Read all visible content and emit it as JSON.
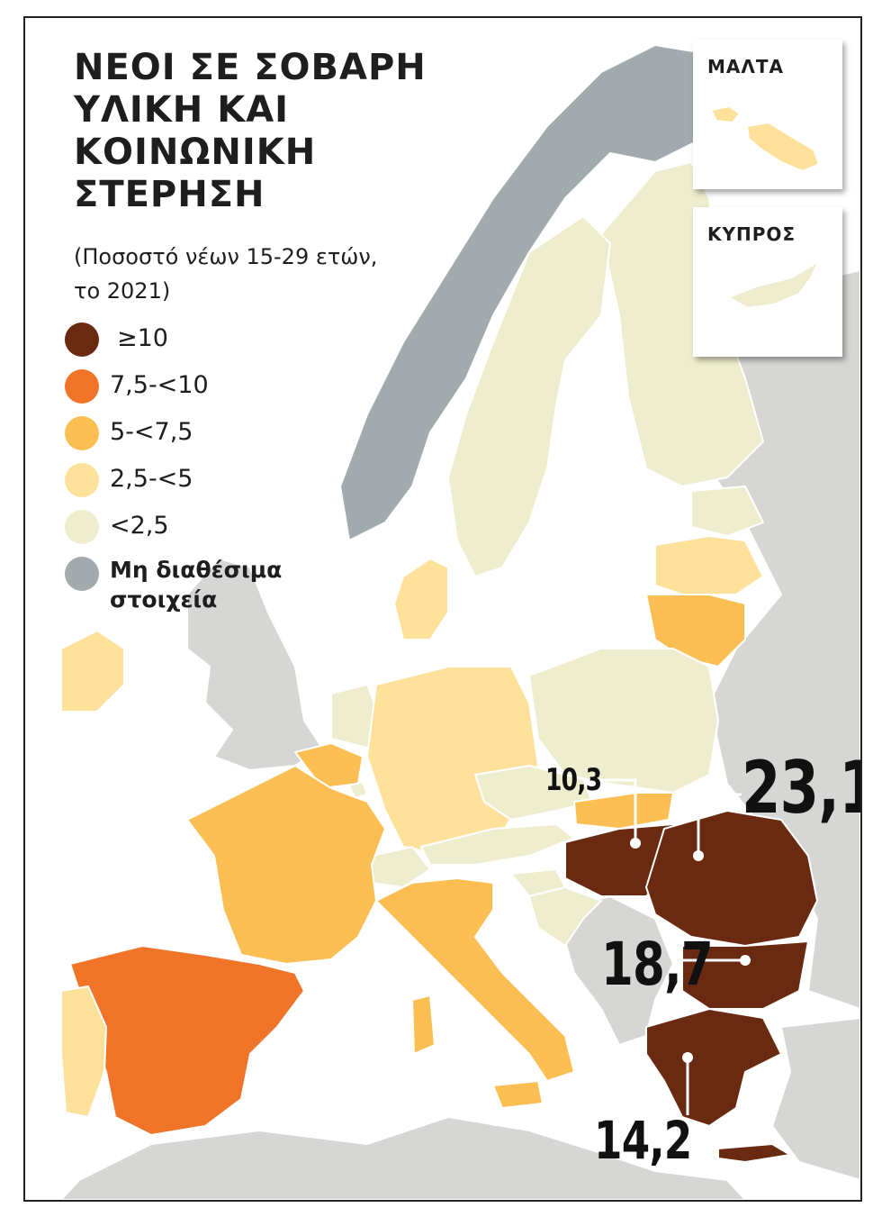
{
  "title_lines": [
    "ΝΕΟΙ ΣΕ ΣΟΒΑΡΗ",
    "ΥΛΙΚΗ ΚΑΙ",
    "ΚΟΙΝΩΝΙΚΗ",
    "ΣΤΕΡΗΣΗ"
  ],
  "subtitle_lines": [
    "(Ποσοστό νέων 15-29 ετών,",
    "το 2021)"
  ],
  "legend": [
    {
      "label": "≥10",
      "color": "#6a2a12"
    },
    {
      "label": "7,5-<10",
      "color": "#f07427"
    },
    {
      "label": "5-<7,5",
      "color": "#fbbe52"
    },
    {
      "label": "2,5-<5",
      "color": "#fde19b"
    },
    {
      "label": "<2,5",
      "color": "#eeedce"
    },
    {
      "label": "Μη διαθέσιμα στοιχεία",
      "label_lines": [
        "Μη διαθέσιμα",
        "στοιχεία"
      ],
      "color": "#a2aaae"
    }
  ],
  "insets": [
    {
      "label": "ΜΑΛΤΑ"
    },
    {
      "label": "ΚΥΠΡΟΣ"
    }
  ],
  "callouts": [
    {
      "country": "Hungary",
      "value": "10,3"
    },
    {
      "country": "Romania",
      "value": "23,1"
    },
    {
      "country": "Bulgaria",
      "value": "18,7"
    },
    {
      "country": "Greece",
      "value": "14,2"
    }
  ],
  "colors": {
    "sea": "#ffffff",
    "non_eu": "#d6d7d5",
    "border": "#ffffff"
  }
}
